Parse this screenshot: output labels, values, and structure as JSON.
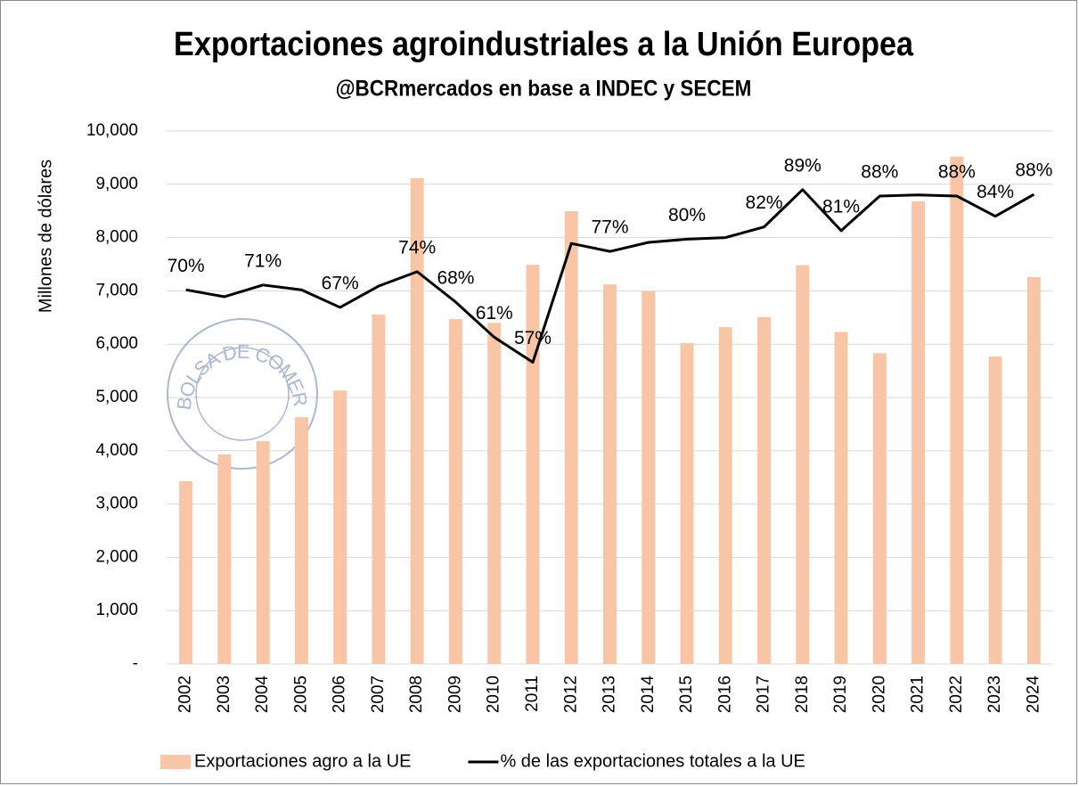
{
  "chart_data": {
    "type": "bar_line",
    "title": "Exportaciones agroindustriales a la Unión Europea",
    "subtitle": "@BCRmercados en base a INDEC y SECEM",
    "y_label": "Millones de dólares",
    "watermark": "BOLSA DE COMERCIO DE ROSARIO",
    "categories": [
      "2002",
      "2003",
      "2004",
      "2005",
      "2006",
      "2007",
      "2008",
      "2009",
      "2010",
      "2011",
      "2012",
      "2013",
      "2014",
      "2015",
      "2016",
      "2017",
      "2018",
      "2019",
      "2020",
      "2021",
      "2022",
      "2023",
      "2024"
    ],
    "series": [
      {
        "name": "Exportaciones agro a la UE",
        "type": "bar",
        "color": "#f8c6a6",
        "values": [
          3430,
          3930,
          4180,
          4630,
          5130,
          6555,
          9115,
          6470,
          6400,
          7490,
          8495,
          7120,
          6990,
          6020,
          6320,
          6510,
          7480,
          6230,
          5830,
          8680,
          9520,
          5770,
          7260
        ]
      },
      {
        "name": "% de las exportaciones totales a la UE",
        "type": "line",
        "color": "#000000",
        "axis": "y2",
        "values": [
          70.2,
          68.9,
          71.1,
          70.2,
          66.9,
          70.9,
          73.6,
          67.9,
          61.3,
          56.6,
          78.9,
          77.4,
          79.1,
          79.7,
          80.0,
          82.0,
          89.0,
          81.3,
          87.8,
          88.0,
          87.8,
          84.0,
          88.1
        ],
        "value_labels": [
          "70%",
          null,
          "71%",
          null,
          "67%",
          null,
          "74%",
          "68%",
          "61%",
          "57%",
          null,
          "77%",
          null,
          "80%",
          null,
          "82%",
          "89%",
          "81%",
          "88%",
          null,
          "88%",
          "84%",
          "88%"
        ]
      }
    ],
    "ylim": [
      0,
      10000
    ],
    "yticks": [
      {
        "value": 0,
        "label": "-"
      },
      {
        "value": 1000,
        "label": "1,000"
      },
      {
        "value": 2000,
        "label": "2,000"
      },
      {
        "value": 3000,
        "label": "3,000"
      },
      {
        "value": 4000,
        "label": "4,000"
      },
      {
        "value": 5000,
        "label": "5,000"
      },
      {
        "value": 6000,
        "label": "6,000"
      },
      {
        "value": 7000,
        "label": "7,000"
      },
      {
        "value": 8000,
        "label": "8,000"
      },
      {
        "value": 9000,
        "label": "9,000"
      },
      {
        "value": 10000,
        "label": "10,000"
      }
    ],
    "y2lim": [
      0,
      100
    ],
    "grid": true,
    "legend": "bottom"
  }
}
